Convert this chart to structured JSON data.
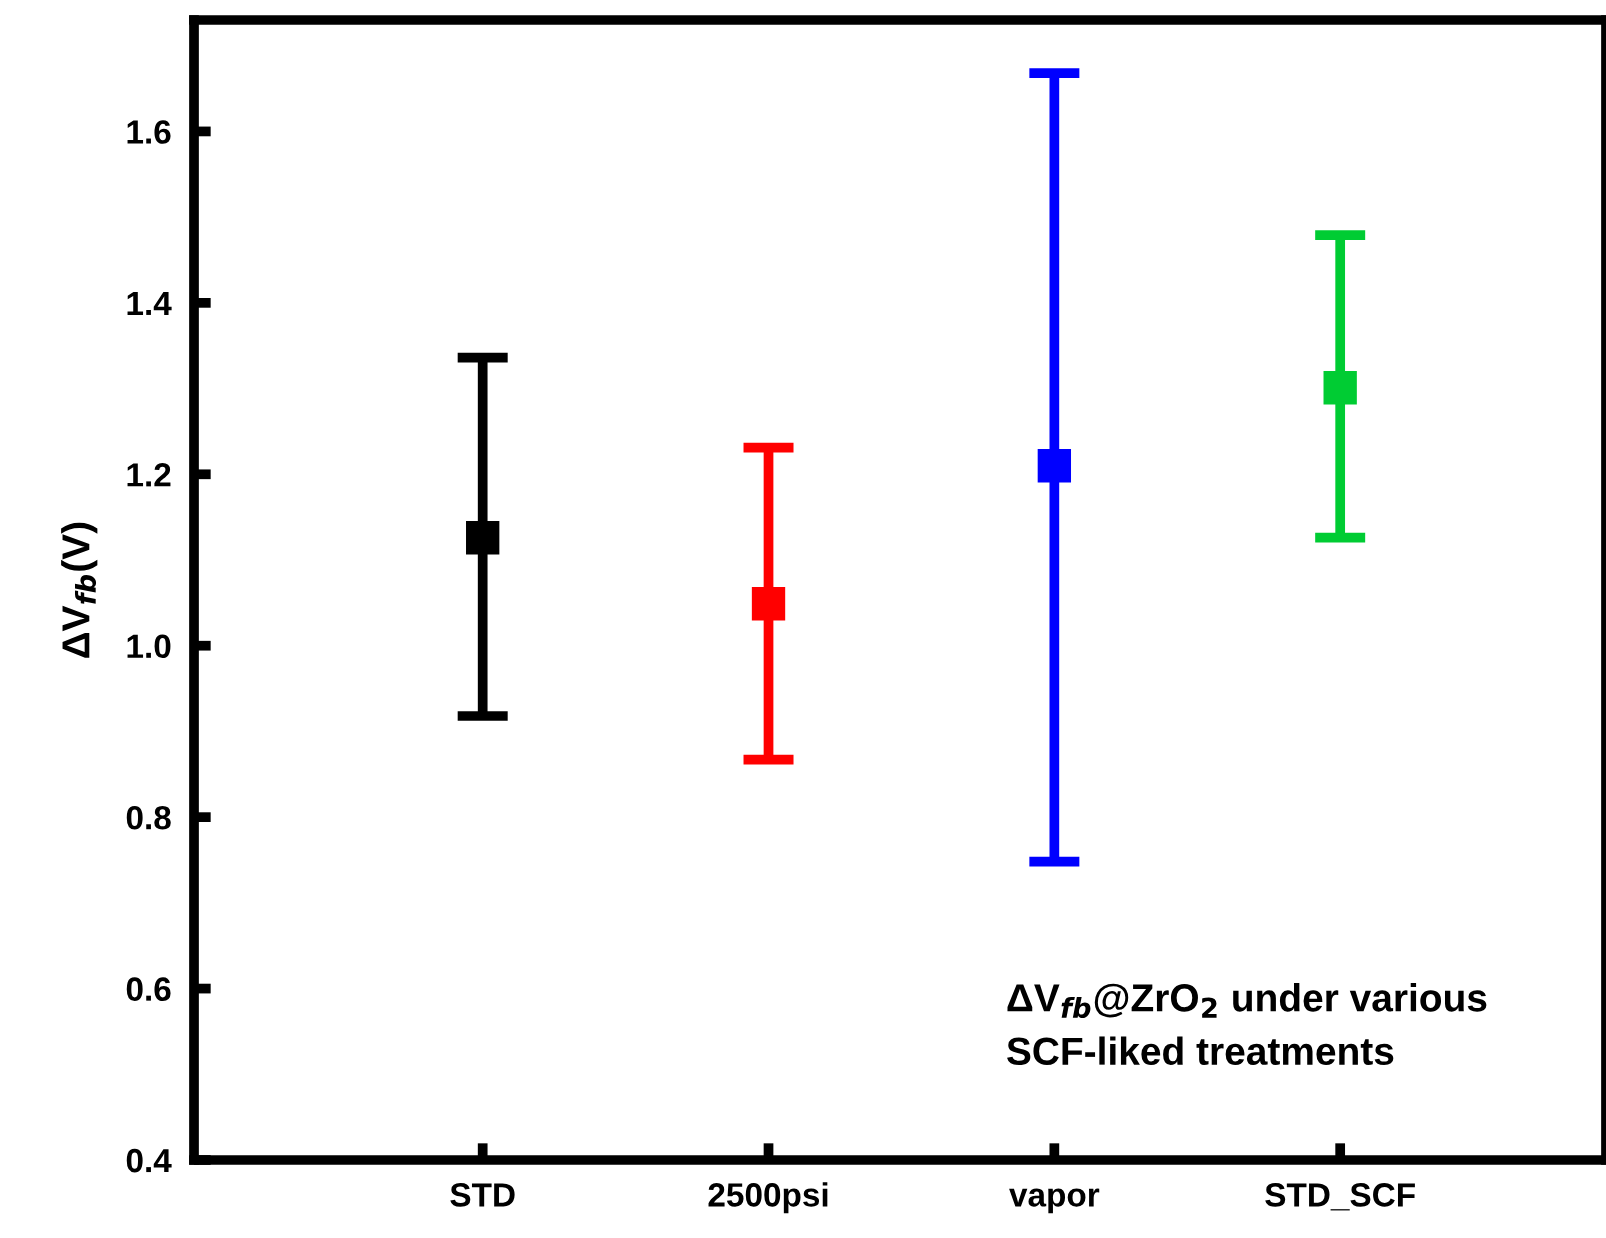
{
  "chart_data": {
    "type": "scatter",
    "ylabel": "ΔV$_{fb}$(V)",
    "categories": [
      "STD",
      "2500psi",
      "vapor",
      "STD_SCF"
    ],
    "values": [
      1.126,
      1.049,
      1.21,
      1.301
    ],
    "colors": [
      "#000000",
      "#ff0000",
      "#0000ff",
      "#00cc33"
    ],
    "errors": [
      [
        0.918,
        1.336
      ],
      [
        0.867,
        1.231
      ],
      [
        0.748,
        1.668
      ],
      [
        1.126,
        1.479
      ]
    ],
    "marker": "square",
    "ylim": [
      0.4,
      1.73
    ],
    "yticks": [
      {
        "value": 0.4,
        "label": "0.4"
      },
      {
        "value": 0.6,
        "label": "0.6"
      },
      {
        "value": 0.8,
        "label": "0.8"
      },
      {
        "value": 1.0,
        "label": "1.0"
      },
      {
        "value": 1.2,
        "label": "1.2"
      },
      {
        "value": 1.4,
        "label": "1.4"
      },
      {
        "value": 1.6,
        "label": "1.6"
      }
    ],
    "grid": false,
    "annotations": [
      "ΔV$_{fb}$@ZrO$_{2}$ under various\nSCF-liked treatments"
    ]
  }
}
